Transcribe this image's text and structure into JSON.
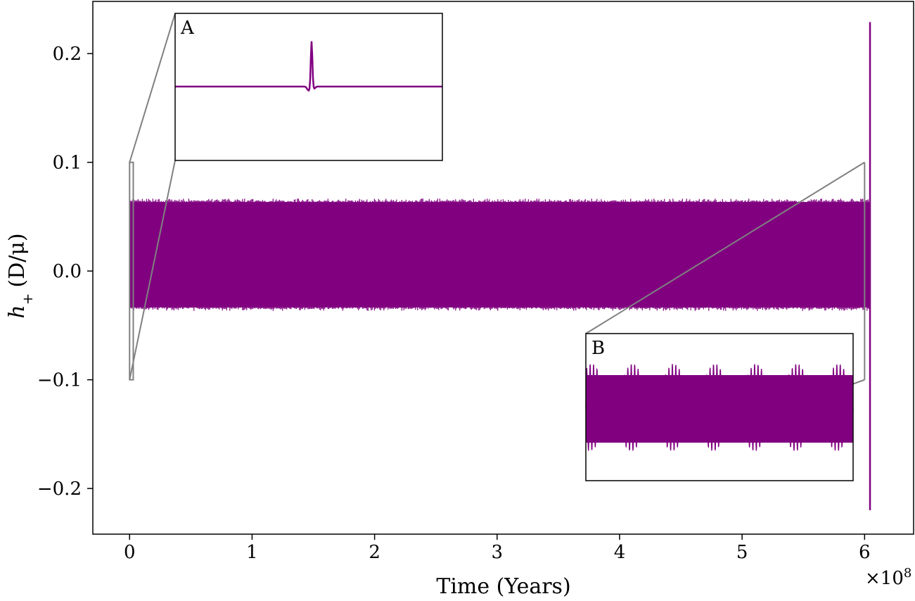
{
  "chart_data": {
    "type": "line",
    "xlabel": "Time (Years)",
    "ylabel_symbol": "h",
    "ylabel_subscript": "+",
    "ylabel_units": "(D/μ)",
    "x_multiplier": "×10",
    "x_multiplier_exp": "8",
    "xlim": [
      -0.3,
      6.4
    ],
    "ylim": [
      -0.242,
      0.248
    ],
    "xticks": [
      0,
      1,
      2,
      3,
      4,
      5,
      6
    ],
    "xtick_labels": [
      "0",
      "1",
      "2",
      "3",
      "4",
      "5",
      "6"
    ],
    "yticks": [
      0.2,
      0.1,
      0.0,
      -0.1,
      -0.2
    ],
    "ytick_labels": [
      "0.2",
      "0.1",
      "0.0",
      "−0.1",
      "−0.2"
    ],
    "grid": false,
    "series": [
      {
        "color": "#800080",
        "x_range": [
          0,
          6.05
        ],
        "y_band": [
          -0.036,
          0.066
        ],
        "band_peak_max": 0.067,
        "band_trough_min": -0.039
      }
    ],
    "final_spike": {
      "x": 6.05,
      "y_max": 0.229,
      "y_min": -0.22
    },
    "zoom_regions": [
      {
        "label": "A",
        "x_range": [
          0,
          0.03
        ],
        "y_range": [
          -0.1,
          0.1
        ]
      },
      {
        "label": "B",
        "x_range": [
          6.0,
          6.05
        ],
        "y_range": [
          -0.1,
          0.1
        ]
      }
    ],
    "inset_A": {
      "label": "A",
      "baseline": 0.0,
      "dip": -0.05,
      "peak": 0.55
    },
    "inset_B": {
      "label": "B",
      "carrier_amplitude": 0.42,
      "modulation_amplitude": 0.2,
      "beats": 6.5
    },
    "colors": {
      "series": "#800080",
      "connector": "#808080",
      "frame": "#000000"
    }
  }
}
